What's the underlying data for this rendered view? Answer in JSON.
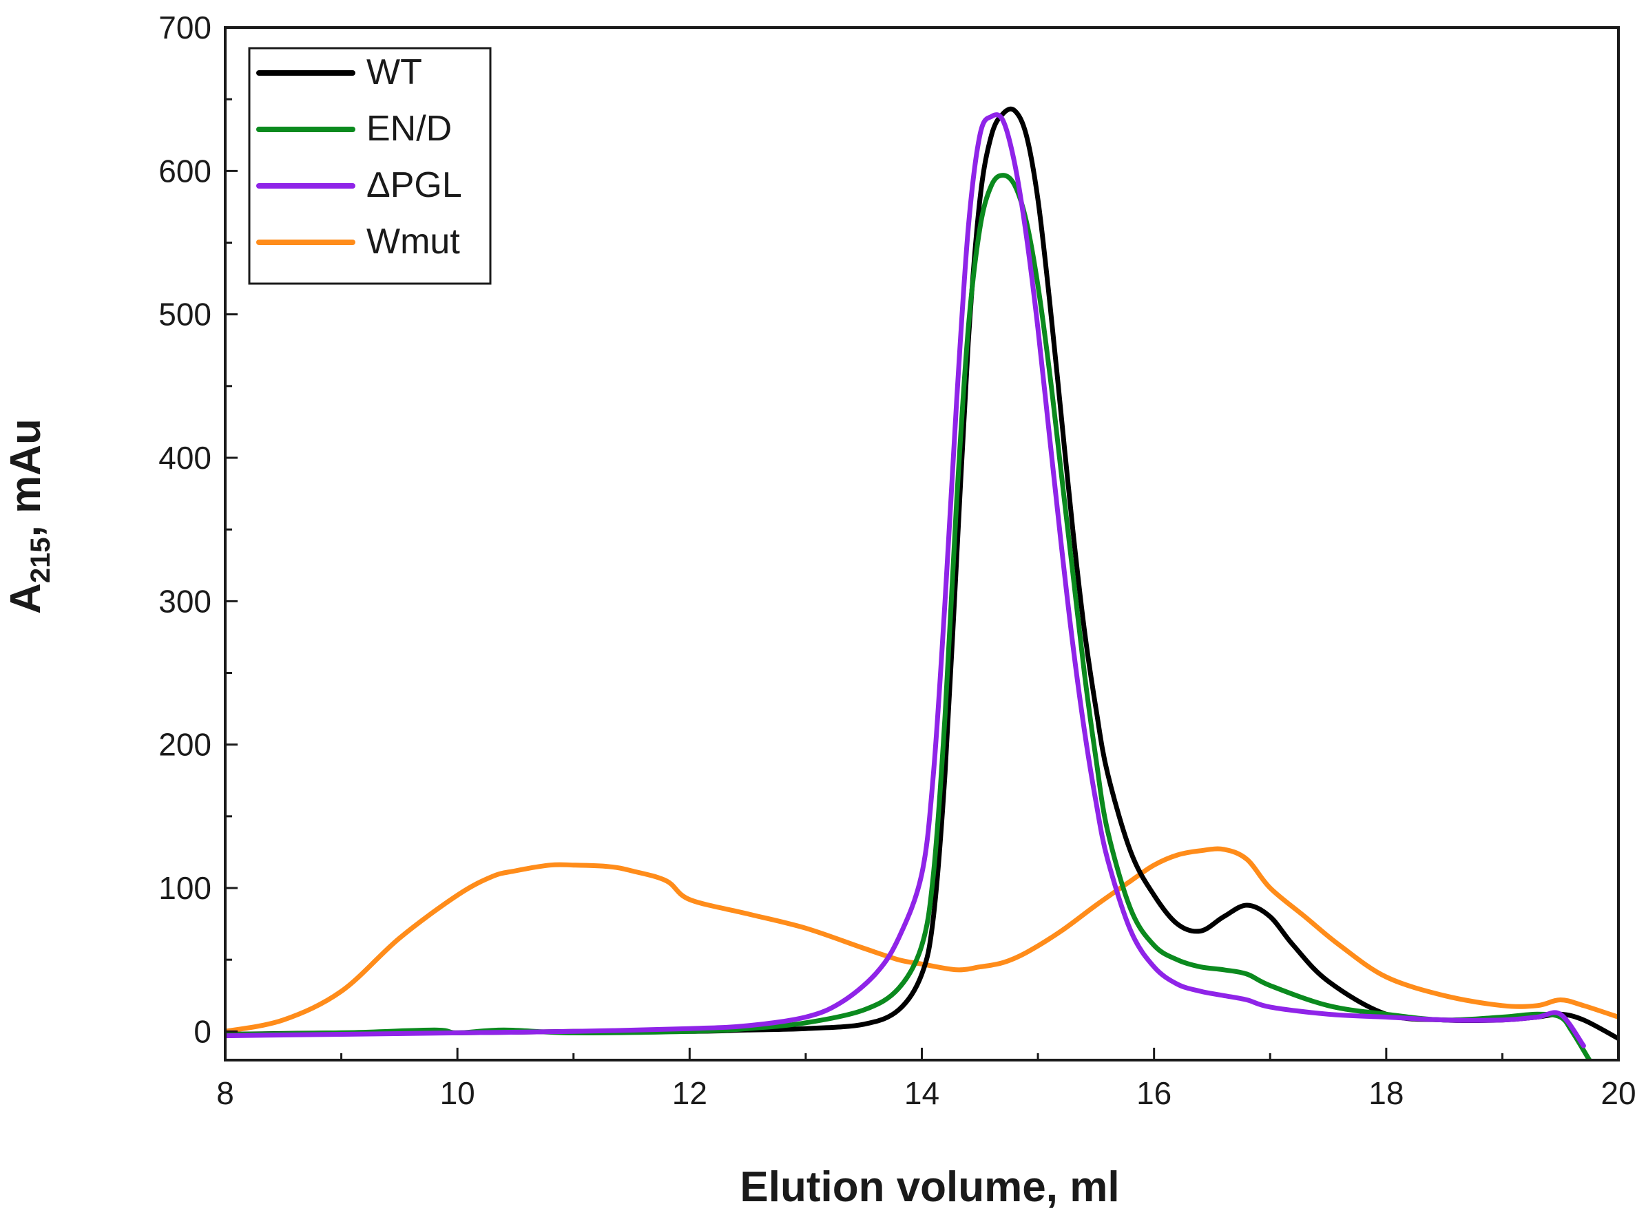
{
  "chart_data": {
    "type": "line",
    "xlabel": "Elution volume, ml",
    "ylabel": {
      "main": "A",
      "sub": "215",
      "suffix": ", mAu"
    },
    "xlim": [
      8,
      20
    ],
    "ylim": [
      -20,
      700
    ],
    "xticks": [
      8,
      10,
      12,
      14,
      16,
      18,
      20
    ],
    "yticks": [
      0,
      100,
      200,
      300,
      400,
      500,
      600,
      700
    ],
    "grid": false,
    "legend": "top-left",
    "series": [
      {
        "name": "WT",
        "color": "#000000",
        "x": [
          8,
          9,
          10,
          11,
          12,
          12.5,
          13,
          13.5,
          13.8,
          14,
          14.1,
          14.2,
          14.3,
          14.4,
          14.5,
          14.6,
          14.7,
          14.8,
          14.9,
          15,
          15.1,
          15.2,
          15.3,
          15.4,
          15.5,
          15.6,
          15.8,
          16,
          16.2,
          16.4,
          16.6,
          16.8,
          17,
          17.2,
          17.5,
          18,
          18.5,
          19,
          19.3,
          19.5,
          19.7,
          20
        ],
        "y": [
          -2,
          -1,
          -1,
          0,
          0,
          1,
          2,
          5,
          15,
          40,
          80,
          180,
          330,
          480,
          580,
          625,
          640,
          642,
          625,
          580,
          510,
          430,
          350,
          280,
          225,
          180,
          125,
          95,
          75,
          70,
          80,
          88,
          80,
          60,
          35,
          12,
          8,
          8,
          10,
          12,
          8,
          -5
        ]
      },
      {
        "name": "EN/D",
        "color": "#0b8a1e",
        "x": [
          8,
          9,
          9.8,
          10,
          10.4,
          11,
          12,
          12.5,
          13,
          13.5,
          13.8,
          14,
          14.1,
          14.2,
          14.3,
          14.4,
          14.5,
          14.6,
          14.7,
          14.8,
          14.9,
          15,
          15.1,
          15.2,
          15.3,
          15.4,
          15.5,
          15.6,
          15.8,
          16,
          16.2,
          16.4,
          16.6,
          16.8,
          17,
          17.5,
          18,
          18.5,
          19,
          19.3,
          19.5,
          19.6,
          19.75
        ],
        "y": [
          -2,
          -1,
          1,
          -1,
          1,
          -1,
          0,
          2,
          6,
          15,
          30,
          60,
          110,
          220,
          370,
          490,
          560,
          590,
          597,
          590,
          565,
          520,
          460,
          390,
          320,
          250,
          190,
          140,
          85,
          60,
          50,
          45,
          43,
          40,
          32,
          18,
          12,
          8,
          10,
          12,
          10,
          0,
          -20
        ]
      },
      {
        "name": "ΔPGL",
        "color": "#8f24e8",
        "x": [
          8,
          9,
          10,
          11,
          12,
          12.5,
          13,
          13.3,
          13.6,
          13.8,
          14,
          14.1,
          14.2,
          14.3,
          14.4,
          14.5,
          14.6,
          14.7,
          14.8,
          14.9,
          15,
          15.1,
          15.2,
          15.3,
          15.4,
          15.5,
          15.6,
          15.8,
          16,
          16.2,
          16.4,
          16.6,
          16.8,
          17,
          17.5,
          18,
          18.5,
          19,
          19.3,
          19.5,
          19.7
        ],
        "y": [
          -3,
          -2,
          -1,
          0,
          2,
          4,
          10,
          20,
          40,
          65,
          110,
          180,
          300,
          440,
          560,
          625,
          638,
          635,
          605,
          555,
          490,
          415,
          340,
          270,
          210,
          160,
          120,
          70,
          45,
          33,
          28,
          25,
          22,
          17,
          12,
          10,
          8,
          8,
          10,
          12,
          -10
        ]
      },
      {
        "name": "Wmut",
        "color": "#ff8c1a",
        "x": [
          8,
          8.5,
          9,
          9.5,
          10,
          10.3,
          10.5,
          10.8,
          11,
          11.3,
          11.5,
          11.8,
          12,
          12.5,
          13,
          13.5,
          13.8,
          14,
          14.3,
          14.5,
          14.7,
          14.9,
          15.2,
          15.5,
          15.8,
          16,
          16.2,
          16.4,
          16.6,
          16.8,
          17,
          17.3,
          17.6,
          18,
          18.5,
          19,
          19.3,
          19.5,
          19.7,
          20
        ],
        "y": [
          0,
          8,
          28,
          65,
          95,
          108,
          112,
          116,
          116,
          115,
          112,
          105,
          92,
          82,
          72,
          58,
          50,
          47,
          43,
          45,
          48,
          55,
          70,
          88,
          105,
          116,
          123,
          126,
          127,
          120,
          100,
          80,
          60,
          38,
          25,
          18,
          18,
          22,
          18,
          10
        ]
      }
    ]
  }
}
